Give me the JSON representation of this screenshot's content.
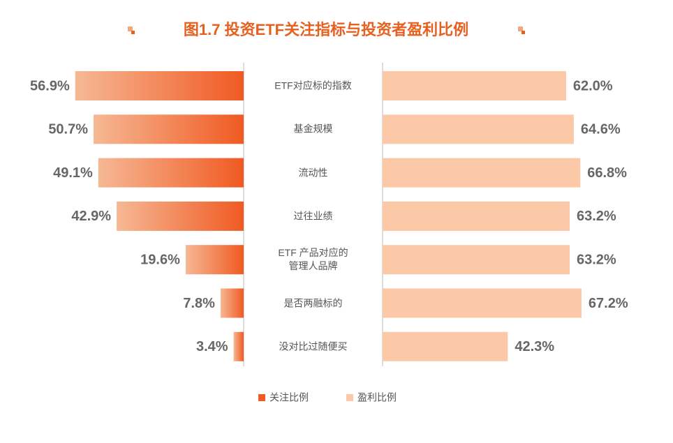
{
  "chart_data": {
    "type": "butterfly",
    "title": "图1.7  投资ETF关注指标与投资者盈利比例",
    "categories": [
      "ETF对应标的指数",
      "基金规模",
      "流动性",
      "过往业绩",
      "ETF 产品对应的\n管理人品牌",
      "是否两融标的",
      "没对比过随便买"
    ],
    "series": [
      {
        "name": "关注比例",
        "color": "#f05a22",
        "side": "left",
        "values": [
          56.9,
          50.7,
          49.1,
          42.9,
          19.6,
          7.8,
          3.4
        ],
        "value_labels": [
          "56.9%",
          "50.7%",
          "49.1%",
          "42.9%",
          "19.6%",
          "7.8%",
          "3.4%"
        ]
      },
      {
        "name": "盈利比例",
        "color": "#fbc9a7",
        "side": "right",
        "values": [
          62.0,
          64.6,
          66.8,
          63.2,
          63.2,
          67.2,
          42.3
        ],
        "value_labels": [
          "62.0%",
          "64.6%",
          "66.8%",
          "63.2%",
          "63.2%",
          "67.2%",
          "42.3%"
        ]
      }
    ]
  }
}
